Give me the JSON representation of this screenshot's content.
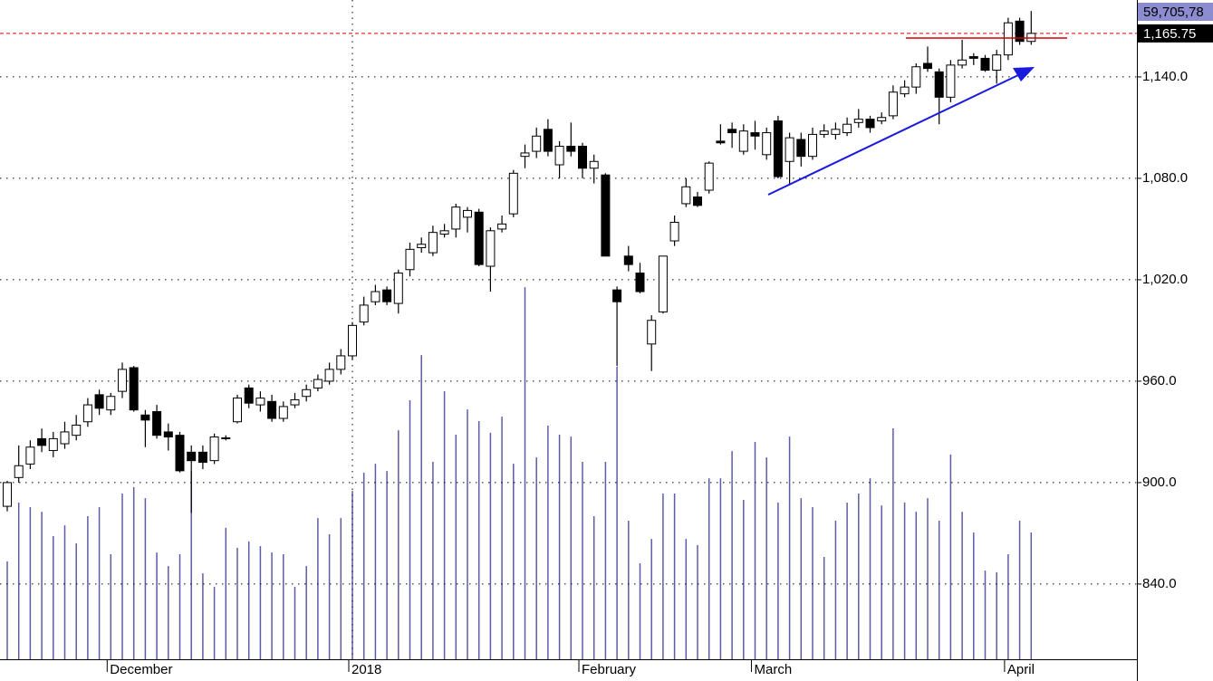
{
  "chart_data": {
    "type": "candlestick",
    "categories": [
      null,
      null,
      null,
      null,
      null,
      null,
      null,
      null,
      null,
      "December",
      null,
      null,
      null,
      null,
      null,
      null,
      null,
      null,
      null,
      null,
      null,
      null,
      null,
      null,
      null,
      null,
      null,
      null,
      null,
      null,
      "2018",
      null,
      null,
      null,
      null,
      null,
      null,
      null,
      null,
      null,
      null,
      null,
      null,
      null,
      null,
      null,
      null,
      null,
      null,
      null,
      "February",
      null,
      null,
      null,
      null,
      null,
      null,
      null,
      null,
      null,
      null,
      null,
      null,
      null,
      null,
      "March",
      null,
      null,
      null,
      null,
      null,
      null,
      null,
      null,
      null,
      null,
      null,
      null,
      null,
      null,
      null,
      null,
      null,
      null,
      null,
      null,
      null,
      "April",
      null,
      null
    ],
    "open": [
      886,
      903,
      911,
      926,
      919,
      923,
      928,
      936,
      952,
      943,
      954,
      968,
      940,
      942,
      930,
      928,
      918,
      918,
      913,
      926,
      936,
      956,
      946,
      948,
      938,
      946,
      951,
      956,
      960,
      967,
      975,
      995,
      1007,
      1014,
      1006,
      1026,
      1039,
      1036,
      1047,
      1050,
      1057,
      1060,
      1028,
      1050,
      1059,
      1093,
      1096,
      1109,
      1088,
      1099,
      1099,
      1086,
      1082,
      1014,
      1034,
      1024,
      982,
      1001,
      1043,
      1065,
      1069,
      1073,
      1102,
      1109,
      1096,
      1107,
      1094,
      1114,
      1090,
      1103,
      1093,
      1106,
      1106,
      1107,
      1113,
      1115,
      1114,
      1117,
      1130,
      1134,
      1148,
      1143,
      1128,
      1147,
      1152,
      1151,
      1144,
      1153,
      1173,
      1161
    ],
    "high": [
      901,
      922,
      925,
      932,
      930,
      936,
      940,
      950,
      955,
      953,
      971,
      969,
      943,
      946,
      935,
      930,
      922,
      922,
      929,
      928,
      952,
      958,
      954,
      952,
      948,
      953,
      958,
      964,
      971,
      979,
      995,
      1010,
      1017,
      1016,
      1026,
      1042,
      1045,
      1052,
      1053,
      1065,
      1063,
      1062,
      1051,
      1058,
      1085,
      1100,
      1110,
      1115,
      1102,
      1113,
      1101,
      1094,
      1083,
      1016,
      1040,
      1030,
      999,
      1034,
      1058,
      1080,
      1072,
      1090,
      1112,
      1113,
      1112,
      1114,
      1110,
      1117,
      1107,
      1107,
      1110,
      1112,
      1113,
      1116,
      1121,
      1117,
      1119,
      1135,
      1138,
      1148,
      1158,
      1145,
      1150,
      1162,
      1154,
      1153,
      1156,
      1175,
      1175,
      1179
    ],
    "low": [
      883,
      900,
      908,
      918,
      915,
      920,
      925,
      933,
      940,
      940,
      950,
      942,
      921,
      926,
      919,
      906,
      882,
      908,
      911,
      925,
      935,
      944,
      942,
      936,
      936,
      944,
      948,
      954,
      958,
      964,
      973,
      993,
      1005,
      1005,
      1000,
      1022,
      1036,
      1034,
      1045,
      1045,
      1048,
      1028,
      1013,
      1048,
      1057,
      1086,
      1092,
      1093,
      1080,
      1093,
      1080,
      1077,
      1034,
      969,
      1025,
      1012,
      966,
      1000,
      1040,
      1063,
      1063,
      1071,
      1100,
      1098,
      1094,
      1097,
      1091,
      1080,
      1076,
      1087,
      1091,
      1104,
      1103,
      1105,
      1110,
      1107,
      1112,
      1115,
      1128,
      1130,
      1143,
      1112,
      1125,
      1145,
      1147,
      1143,
      1136,
      1150,
      1159,
      1159
    ],
    "close": [
      900,
      910,
      921,
      922,
      926,
      930,
      934,
      946,
      944,
      951,
      967,
      943,
      937,
      928,
      927,
      907,
      913,
      912,
      927,
      926.5,
      950,
      947,
      950,
      938,
      945,
      949,
      955,
      961,
      967,
      975,
      993,
      1005,
      1013,
      1007,
      1024,
      1038,
      1041,
      1048,
      1049,
      1063,
      1061,
      1029,
      1049,
      1053,
      1083,
      1095,
      1105,
      1096,
      1099,
      1096,
      1086,
      1090,
      1034,
      1007,
      1029,
      1013,
      996,
      1034,
      1054,
      1075,
      1064,
      1089,
      1101,
      1107,
      1108,
      1105,
      1107,
      1081,
      1104,
      1093,
      1106,
      1108,
      1109,
      1112,
      1115,
      1110,
      1116,
      1131,
      1134,
      1146,
      1145,
      1128,
      1147,
      1150,
      1151,
      1144,
      1153,
      1172,
      1161,
      1165.75
    ],
    "volume": [
      46.1,
      73.8,
      71.7,
      69.5,
      58.0,
      63.1,
      54.6,
      67.4,
      71.7,
      49.5,
      78.1,
      81.1,
      75.9,
      50.3,
      43.9,
      49.5,
      88.7,
      40.5,
      34.1,
      61.9,
      52.5,
      55.5,
      53.3,
      50.3,
      49.5,
      34.1,
      43.9,
      66.5,
      58.9,
      66.5,
      79.3,
      87.9,
      92.1,
      88.7,
      107.9,
      122.0,
      143.3,
      93.0,
      126.3,
      105.8,
      117.7,
      112.2,
      106.7,
      114.3,
      92.1,
      175.3,
      95.1,
      110.1,
      105.8,
      104.9,
      93.0,
      67.4,
      93.0,
      137.8,
      65.3,
      45.2,
      56.7,
      78.1,
      78.1,
      56.7,
      53.8,
      85.3,
      85.3,
      98.1,
      75.1,
      102.4,
      95.1,
      73.8,
      104.9,
      75.9,
      71.7,
      48.2,
      65.3,
      73.8,
      78.1,
      85.3,
      72.5,
      108.8,
      73.8,
      69.5,
      75.9,
      65.3,
      96.4,
      69.5,
      59.7,
      41.8,
      41.0,
      49.5,
      65.3,
      59.70578
    ],
    "volume_label": "59,705,78",
    "volume_lim": [
      0,
      310.6
    ],
    "last_price": {
      "value": 1165.75,
      "label": "1,165.75"
    },
    "up_color": "#ffffff",
    "down_color": "#000000",
    "volume_color": "#5b5ba8",
    "ylim": [
      795.5,
      1185.5
    ],
    "yticks": [
      {
        "value": 840,
        "label": "840.0"
      },
      {
        "value": 900,
        "label": "900.0"
      },
      {
        "value": 960,
        "label": "960.0"
      },
      {
        "value": 1020,
        "label": "1,020.0"
      },
      {
        "value": 1080,
        "label": "1,080.0"
      },
      {
        "value": 1140,
        "label": "1,140.0"
      }
    ],
    "grid": true
  }
}
